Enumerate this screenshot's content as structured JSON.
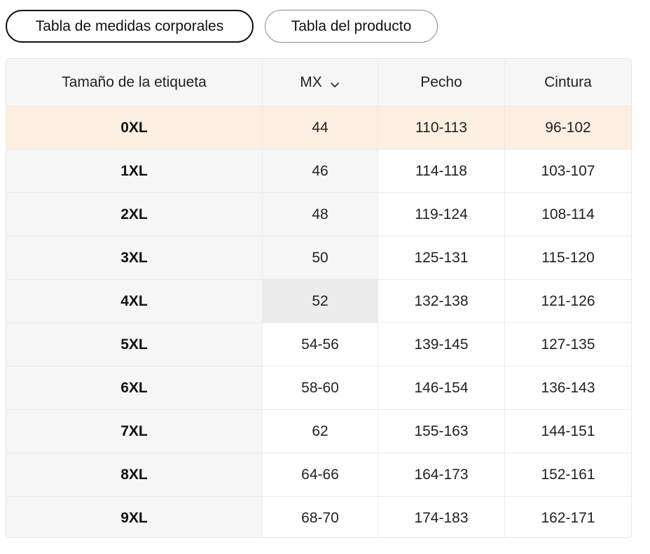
{
  "tabs": {
    "body_measurements": "Tabla de medidas corporales",
    "product_table": "Tabla del producto"
  },
  "table": {
    "headers": {
      "label_size": "Tamaño de la etiqueta",
      "unit": "MX",
      "chest": "Pecho",
      "waist": "Cintura"
    },
    "icons": {
      "unit_dropdown": "chevron-down-icon"
    },
    "rows": [
      {
        "size": "0XL",
        "mx": "44",
        "chest": "110-113",
        "waist": "96-102"
      },
      {
        "size": "1XL",
        "mx": "46",
        "chest": "114-118",
        "waist": "103-107"
      },
      {
        "size": "2XL",
        "mx": "48",
        "chest": "119-124",
        "waist": "108-114"
      },
      {
        "size": "3XL",
        "mx": "50",
        "chest": "125-131",
        "waist": "115-120"
      },
      {
        "size": "4XL",
        "mx": "52",
        "chest": "132-138",
        "waist": "121-126"
      },
      {
        "size": "5XL",
        "mx": "54-56",
        "chest": "139-145",
        "waist": "127-135"
      },
      {
        "size": "6XL",
        "mx": "58-60",
        "chest": "146-154",
        "waist": "136-143"
      },
      {
        "size": "7XL",
        "mx": "62",
        "chest": "155-163",
        "waist": "144-151"
      },
      {
        "size": "8XL",
        "mx": "64-66",
        "chest": "164-173",
        "waist": "152-161"
      },
      {
        "size": "9XL",
        "mx": "68-70",
        "chest": "174-183",
        "waist": "162-171"
      }
    ]
  },
  "colors": {
    "highlight_row": "#fdefe1",
    "header_bg": "#f6f6f6",
    "first_col_bg": "#f6f6f6",
    "hover_cell": "#ececec",
    "border": "#ebebeb"
  }
}
